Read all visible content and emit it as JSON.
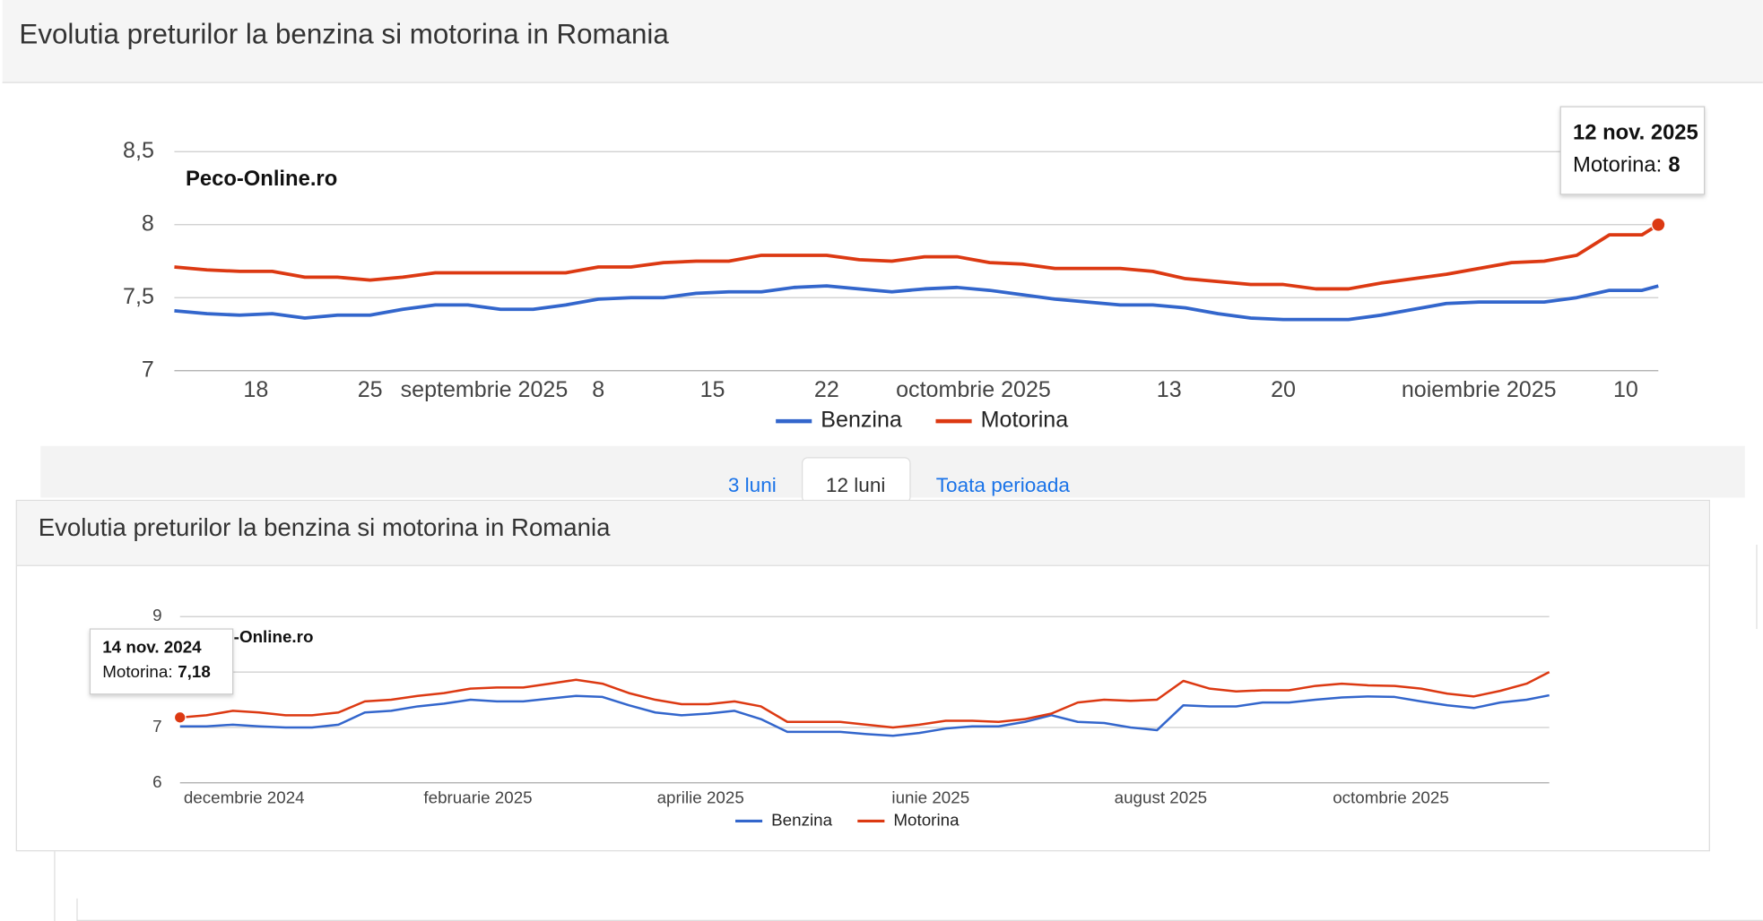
{
  "tabs": [
    "3 luni",
    "12 luni",
    "Toata perioada"
  ],
  "chart_data": [
    {
      "type": "line",
      "title": "Evolutia preturilor la benzina si motorina in Romania",
      "watermark": "Peco-Online.ro",
      "x": [
        "2025-08-13",
        "2025-08-15",
        "2025-08-17",
        "2025-08-19",
        "2025-08-21",
        "2025-08-23",
        "2025-08-25",
        "2025-08-27",
        "2025-08-29",
        "2025-08-31",
        "2025-09-02",
        "2025-09-04",
        "2025-09-06",
        "2025-09-08",
        "2025-09-10",
        "2025-09-12",
        "2025-09-14",
        "2025-09-16",
        "2025-09-18",
        "2025-09-20",
        "2025-09-22",
        "2025-09-24",
        "2025-09-26",
        "2025-09-28",
        "2025-09-30",
        "2025-10-02",
        "2025-10-04",
        "2025-10-06",
        "2025-10-08",
        "2025-10-10",
        "2025-10-12",
        "2025-10-14",
        "2025-10-16",
        "2025-10-18",
        "2025-10-20",
        "2025-10-22",
        "2025-10-24",
        "2025-10-26",
        "2025-10-28",
        "2025-10-30",
        "2025-11-01",
        "2025-11-03",
        "2025-11-05",
        "2025-11-07",
        "2025-11-09",
        "2025-11-11",
        "2025-11-12"
      ],
      "series": [
        {
          "name": "Benzina",
          "color": "#3366cc",
          "values": [
            7.41,
            7.39,
            7.38,
            7.39,
            7.36,
            7.38,
            7.38,
            7.42,
            7.45,
            7.45,
            7.42,
            7.42,
            7.45,
            7.49,
            7.5,
            7.5,
            7.53,
            7.54,
            7.54,
            7.57,
            7.58,
            7.56,
            7.54,
            7.56,
            7.57,
            7.55,
            7.52,
            7.49,
            7.47,
            7.45,
            7.45,
            7.43,
            7.39,
            7.36,
            7.35,
            7.35,
            7.35,
            7.38,
            7.42,
            7.46,
            7.47,
            7.47,
            7.47,
            7.5,
            7.55,
            7.55,
            7.58
          ]
        },
        {
          "name": "Motorina",
          "color": "#dc3912",
          "values": [
            7.71,
            7.69,
            7.68,
            7.68,
            7.64,
            7.64,
            7.62,
            7.64,
            7.67,
            7.67,
            7.67,
            7.67,
            7.67,
            7.71,
            7.71,
            7.74,
            7.75,
            7.75,
            7.79,
            7.79,
            7.79,
            7.76,
            7.75,
            7.78,
            7.78,
            7.74,
            7.73,
            7.7,
            7.7,
            7.7,
            7.68,
            7.63,
            7.61,
            7.59,
            7.59,
            7.56,
            7.56,
            7.6,
            7.63,
            7.66,
            7.7,
            7.74,
            7.75,
            7.79,
            7.93,
            7.93,
            8
          ]
        }
      ],
      "xlim": [
        "2025-08-13",
        "2025-11-12"
      ],
      "xticks": [
        {
          "value": "2025-08-18",
          "label": "18"
        },
        {
          "value": "2025-08-25",
          "label": "25"
        },
        {
          "value": "2025-09-01",
          "label": "septembrie 2025"
        },
        {
          "value": "2025-09-08",
          "label": "8"
        },
        {
          "value": "2025-09-15",
          "label": "15"
        },
        {
          "value": "2025-09-22",
          "label": "22"
        },
        {
          "value": "2025-10-01",
          "label": "octombrie 2025"
        },
        {
          "value": "2025-10-13",
          "label": "13"
        },
        {
          "value": "2025-10-20",
          "label": "20"
        },
        {
          "value": "2025-11-01",
          "label": "noiembrie 2025"
        },
        {
          "value": "2025-11-10",
          "label": "10"
        }
      ],
      "ylim": [
        7,
        8.5
      ],
      "yticks": [
        7,
        {
          "value": 7.5,
          "label": "7,5"
        },
        8,
        {
          "value": 8.5,
          "label": "8,5"
        }
      ],
      "grid": true,
      "tooltip": {
        "title": "12 nov. 2025",
        "label": "Motorina:",
        "value": "8"
      }
    },
    {
      "type": "line",
      "title": "Evolutia preturilor la benzina si motorina in Romania",
      "watermark": "Peco-Online.ro",
      "x": [
        "2024-11-14",
        "2024-11-21",
        "2024-11-28",
        "2024-12-05",
        "2024-12-12",
        "2024-12-19",
        "2024-12-26",
        "2025-01-02",
        "2025-01-09",
        "2025-01-16",
        "2025-01-23",
        "2025-01-30",
        "2025-02-06",
        "2025-02-13",
        "2025-02-20",
        "2025-02-27",
        "2025-03-06",
        "2025-03-13",
        "2025-03-20",
        "2025-03-27",
        "2025-04-03",
        "2025-04-10",
        "2025-04-17",
        "2025-04-24",
        "2025-05-01",
        "2025-05-08",
        "2025-05-15",
        "2025-05-22",
        "2025-05-29",
        "2025-06-05",
        "2025-06-12",
        "2025-06-19",
        "2025-06-26",
        "2025-07-03",
        "2025-07-10",
        "2025-07-17",
        "2025-07-24",
        "2025-07-31",
        "2025-08-07",
        "2025-08-14",
        "2025-08-21",
        "2025-08-28",
        "2025-09-04",
        "2025-09-11",
        "2025-09-18",
        "2025-09-25",
        "2025-10-02",
        "2025-10-09",
        "2025-10-16",
        "2025-10-23",
        "2025-10-30",
        "2025-11-06",
        "2025-11-12"
      ],
      "series": [
        {
          "name": "Benzina",
          "color": "#3366cc",
          "values": [
            7.02,
            7.02,
            7.05,
            7.02,
            7,
            7,
            7.05,
            7.27,
            7.3,
            7.38,
            7.43,
            7.5,
            7.47,
            7.47,
            7.52,
            7.57,
            7.55,
            7.4,
            7.27,
            7.22,
            7.25,
            7.3,
            7.15,
            6.92,
            6.92,
            6.92,
            6.88,
            6.85,
            6.9,
            6.98,
            7.02,
            7.02,
            7.1,
            7.22,
            7.1,
            7.08,
            7,
            6.95,
            7.4,
            7.38,
            7.38,
            7.45,
            7.45,
            7.5,
            7.54,
            7.56,
            7.55,
            7.47,
            7.4,
            7.35,
            7.45,
            7.5,
            7.58
          ]
        },
        {
          "name": "Motorina",
          "color": "#dc3912",
          "values": [
            7.18,
            7.22,
            7.3,
            7.27,
            7.22,
            7.22,
            7.27,
            7.47,
            7.5,
            7.57,
            7.62,
            7.7,
            7.72,
            7.72,
            7.79,
            7.86,
            7.79,
            7.62,
            7.5,
            7.42,
            7.42,
            7.47,
            7.38,
            7.1,
            7.1,
            7.1,
            7.05,
            7,
            7.05,
            7.12,
            7.12,
            7.1,
            7.15,
            7.25,
            7.45,
            7.5,
            7.48,
            7.5,
            7.84,
            7.7,
            7.65,
            7.67,
            7.67,
            7.75,
            7.79,
            7.76,
            7.75,
            7.7,
            7.61,
            7.56,
            7.66,
            7.79,
            8
          ]
        }
      ],
      "xlim": [
        "2024-11-14",
        "2025-11-12"
      ],
      "xticks": [
        {
          "value": "2024-12-01",
          "label": "decembrie 2024"
        },
        {
          "value": "2025-02-01",
          "label": "februarie 2025"
        },
        {
          "value": "2025-04-01",
          "label": "aprilie 2025"
        },
        {
          "value": "2025-06-01",
          "label": "iunie 2025"
        },
        {
          "value": "2025-08-01",
          "label": "august 2025"
        },
        {
          "value": "2025-10-01",
          "label": "octombrie 2025"
        }
      ],
      "ylim": [
        6,
        9
      ],
      "yticks": [
        6,
        7,
        8,
        9
      ],
      "grid": true,
      "tooltip": {
        "title": "14 nov. 2024",
        "label": "Motorina:",
        "value": "7,18"
      }
    }
  ]
}
